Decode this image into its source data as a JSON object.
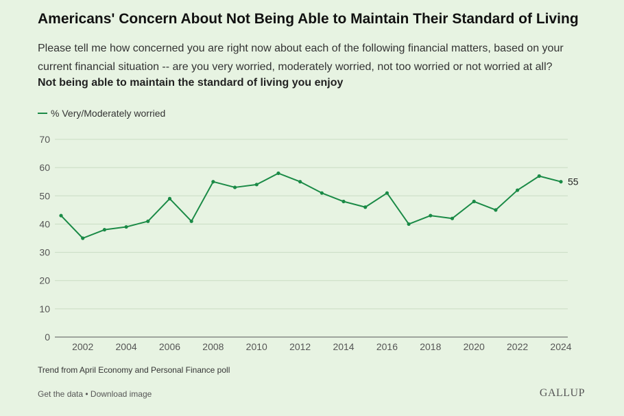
{
  "header": {
    "title": "Americans' Concern About Not Being Able to Maintain Their Standard of Living",
    "subtitle": "Please tell me how concerned you are right now about each of the following financial matters, based on your current financial situation -- are you very worried, moderately worried, not too worried or not worried at all?",
    "question": "Not being able to maintain the standard of living you enjoy"
  },
  "chart_data": {
    "type": "line",
    "x": [
      2001,
      2002,
      2003,
      2004,
      2005,
      2006,
      2007,
      2008,
      2009,
      2010,
      2011,
      2012,
      2013,
      2014,
      2015,
      2016,
      2017,
      2018,
      2019,
      2020,
      2021,
      2022,
      2023,
      2024
    ],
    "series": [
      {
        "name": "% Very/Moderately worried",
        "values": [
          43,
          35,
          38,
          39,
          41,
          49,
          41,
          55,
          53,
          54,
          58,
          55,
          51,
          48,
          46,
          51,
          40,
          43,
          42,
          48,
          45,
          52,
          57,
          55
        ],
        "color": "#1a8a46",
        "end_label": "55"
      }
    ],
    "xticks": [
      2002,
      2004,
      2006,
      2008,
      2010,
      2012,
      2014,
      2016,
      2018,
      2020,
      2022,
      2024
    ],
    "yticks": [
      0,
      10,
      20,
      30,
      40,
      50,
      60,
      70
    ],
    "xlim": [
      2001,
      2024
    ],
    "ylim": [
      0,
      70
    ],
    "grid": true,
    "legend_position": "top-left"
  },
  "footer": {
    "note": "Trend from April Economy and Personal Finance poll",
    "get_data": "Get the data",
    "separator": " • ",
    "download": "Download image",
    "brand": "GALLUP"
  }
}
